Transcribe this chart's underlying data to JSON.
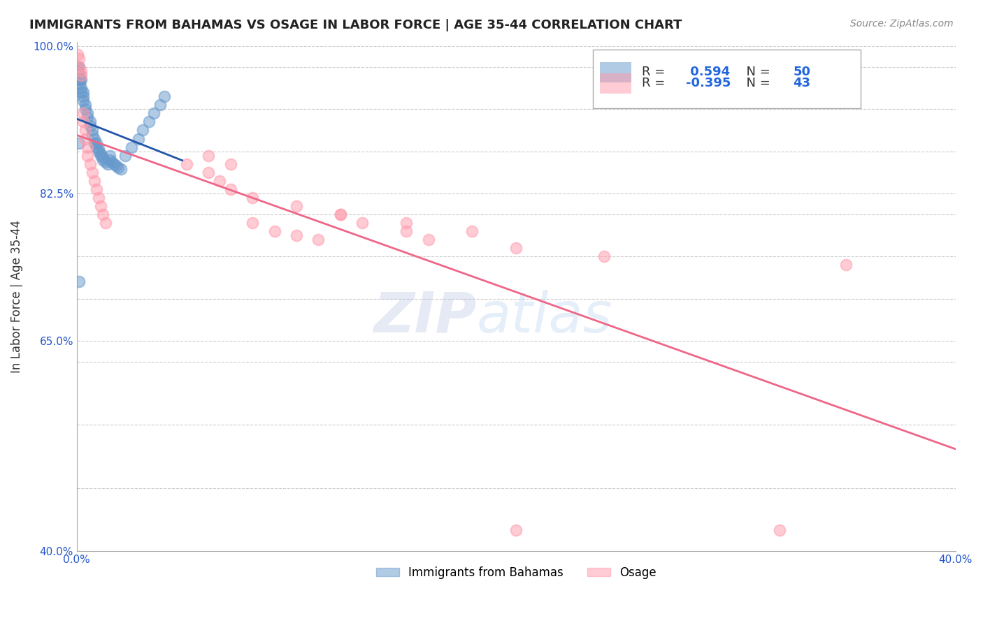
{
  "title": "IMMIGRANTS FROM BAHAMAS VS OSAGE IN LABOR FORCE | AGE 35-44 CORRELATION CHART",
  "source": "Source: ZipAtlas.com",
  "ylabel": "In Labor Force | Age 35-44",
  "legend_label1": "Immigrants from Bahamas",
  "legend_label2": "Osage",
  "R1": 0.594,
  "N1": 50,
  "R2": -0.395,
  "N2": 43,
  "color1": "#6699CC",
  "color2": "#FF99AA",
  "line_color1": "#2255AA",
  "line_color2": "#EE6688",
  "xlim": [
    0.0,
    0.4
  ],
  "ylim": [
    0.4,
    1.005
  ],
  "blue_x": [
    0.0005,
    0.0008,
    0.001,
    0.001,
    0.001,
    0.0012,
    0.0015,
    0.002,
    0.002,
    0.002,
    0.003,
    0.003,
    0.003,
    0.004,
    0.004,
    0.005,
    0.005,
    0.006,
    0.006,
    0.007,
    0.007,
    0.008,
    0.008,
    0.009,
    0.009,
    0.01,
    0.01,
    0.011,
    0.011,
    0.012,
    0.012,
    0.013,
    0.014,
    0.015,
    0.015,
    0.016,
    0.017,
    0.018,
    0.019,
    0.02,
    0.022,
    0.025,
    0.028,
    0.03,
    0.033,
    0.035,
    0.038,
    0.04,
    0.001,
    0.001
  ],
  "blue_y": [
    0.975,
    0.97,
    0.975,
    0.968,
    0.962,
    0.96,
    0.955,
    0.96,
    0.95,
    0.945,
    0.945,
    0.94,
    0.935,
    0.93,
    0.925,
    0.92,
    0.915,
    0.91,
    0.905,
    0.9,
    0.895,
    0.89,
    0.885,
    0.885,
    0.88,
    0.878,
    0.875,
    0.872,
    0.87,
    0.868,
    0.865,
    0.862,
    0.86,
    0.87,
    0.865,
    0.862,
    0.86,
    0.858,
    0.856,
    0.854,
    0.87,
    0.88,
    0.89,
    0.9,
    0.91,
    0.92,
    0.93,
    0.94,
    0.885,
    0.72
  ],
  "pink_x": [
    0.0005,
    0.001,
    0.001,
    0.002,
    0.002,
    0.003,
    0.003,
    0.004,
    0.004,
    0.005,
    0.005,
    0.006,
    0.007,
    0.008,
    0.009,
    0.01,
    0.011,
    0.012,
    0.013,
    0.05,
    0.06,
    0.065,
    0.07,
    0.08,
    0.1,
    0.12,
    0.15,
    0.18,
    0.06,
    0.07,
    0.08,
    0.09,
    0.1,
    0.11,
    0.12,
    0.13,
    0.15,
    0.16,
    0.2,
    0.24,
    0.2,
    0.32,
    0.35
  ],
  "pink_y": [
    0.99,
    0.985,
    0.975,
    0.97,
    0.965,
    0.92,
    0.91,
    0.9,
    0.89,
    0.88,
    0.87,
    0.86,
    0.85,
    0.84,
    0.83,
    0.82,
    0.81,
    0.8,
    0.79,
    0.86,
    0.85,
    0.84,
    0.83,
    0.82,
    0.81,
    0.8,
    0.79,
    0.78,
    0.87,
    0.86,
    0.79,
    0.78,
    0.775,
    0.77,
    0.8,
    0.79,
    0.78,
    0.77,
    0.76,
    0.75,
    0.425,
    0.425,
    0.74
  ],
  "watermark_zip": "ZIP",
  "watermark_atlas": "atlas",
  "background_color": "#FFFFFF"
}
